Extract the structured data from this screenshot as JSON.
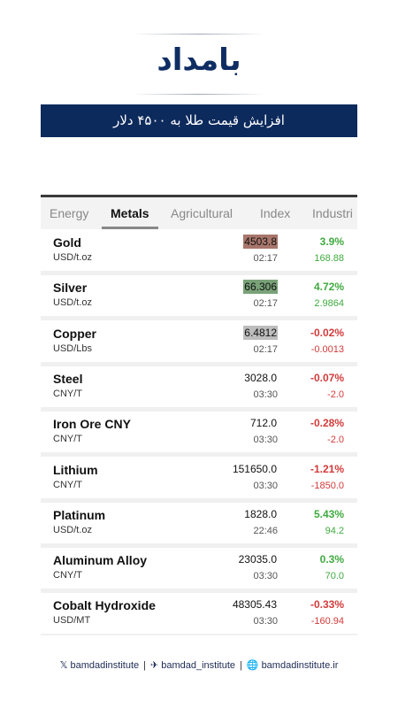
{
  "logo": "بامداد",
  "headline": "افزایش قیمت طلا به ۴۵۰۰ دلار",
  "tabs": [
    "Energy",
    "Metals",
    "Agricultural",
    "Index",
    "Industri"
  ],
  "active_tab": 1,
  "rows": [
    {
      "name": "Gold",
      "unit": "USD/t.oz",
      "price": "4503.8",
      "time": "02:17",
      "change_pct": "3.9%",
      "change": "168.88",
      "highlight": "#a8766b"
    },
    {
      "name": "Silver",
      "unit": "USD/t.oz",
      "price": "66.306",
      "time": "02:17",
      "change_pct": "4.72%",
      "change": "2.9864",
      "highlight": "#79a279"
    },
    {
      "name": "Copper",
      "unit": "USD/Lbs",
      "price": "6.4812",
      "time": "02:17",
      "change_pct": "-0.02%",
      "change": "-0.0013",
      "highlight": "#bdbdbd"
    },
    {
      "name": "Steel",
      "unit": "CNY/T",
      "price": "3028.0",
      "time": "03:30",
      "change_pct": "-0.07%",
      "change": "-2.0"
    },
    {
      "name": "Iron Ore CNY",
      "unit": "CNY/T",
      "price": "712.0",
      "time": "03:30",
      "change_pct": "-0.28%",
      "change": "-2.0"
    },
    {
      "name": "Lithium",
      "unit": "CNY/T",
      "price": "151650.0",
      "time": "03:30",
      "change_pct": "-1.21%",
      "change": "-1850.0"
    },
    {
      "name": "Platinum",
      "unit": "USD/t.oz",
      "price": "1828.0",
      "time": "22:46",
      "change_pct": "5.43%",
      "change": "94.2"
    },
    {
      "name": "Aluminum Alloy",
      "unit": "CNY/T",
      "price": "23035.0",
      "time": "03:30",
      "change_pct": "0.3%",
      "change": "70.0"
    },
    {
      "name": "Cobalt Hydroxide",
      "unit": "USD/MT",
      "price": "48305.43",
      "time": "03:30",
      "change_pct": "-0.33%",
      "change": "-160.94"
    }
  ],
  "footer": [
    "bamdadinstitute",
    "bamdad_institute",
    "bamdadinstitute.ir"
  ]
}
